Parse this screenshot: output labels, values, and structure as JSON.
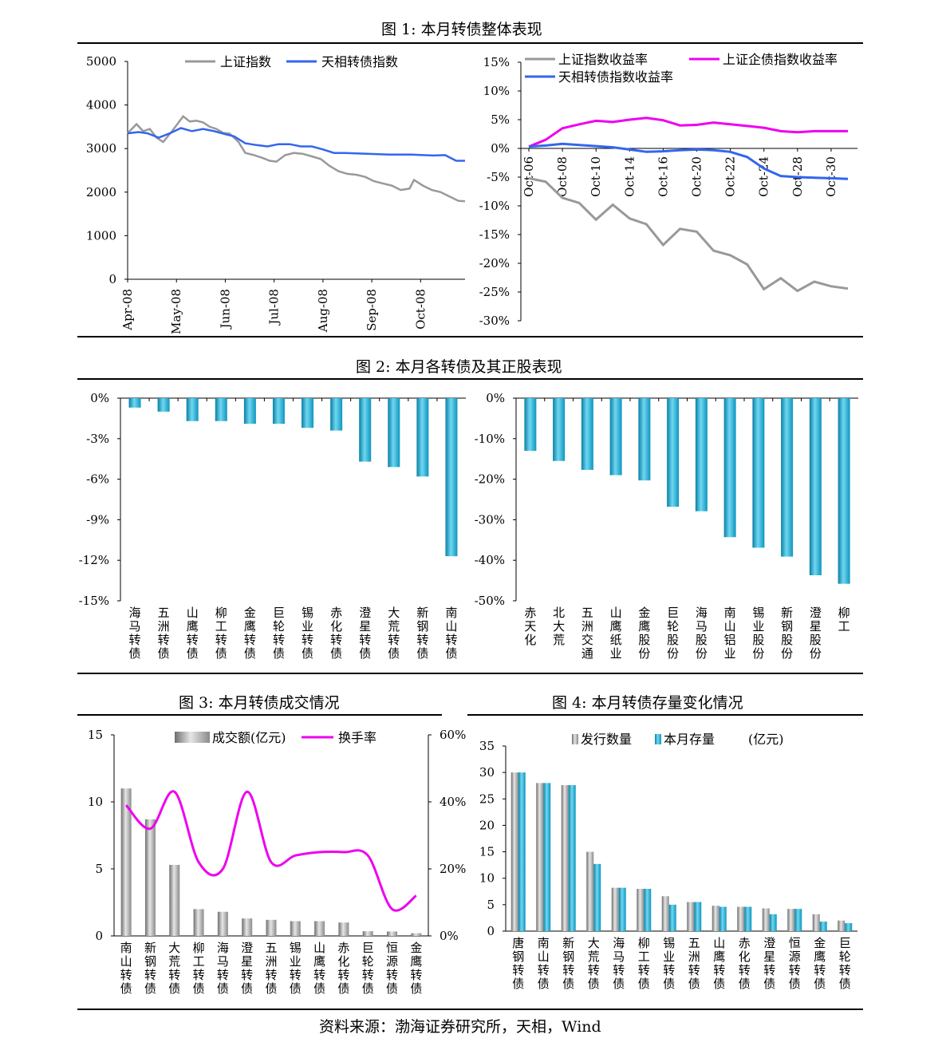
{
  "fig1": {
    "title": "图 1:  本月转债整体表现"
  },
  "fig2": {
    "title": "图 2:  本月各转债及其正股表现"
  },
  "fig3": {
    "title": "图 3:  本月转债成交情况"
  },
  "fig4": {
    "title": "图 4:  本月转债存量变化情况"
  },
  "source": "资料来源：渤海证券研究所，天相，Wind",
  "chart_data": [
    {
      "id": "c1",
      "type": "line",
      "legend": [
        "上证指数",
        "天相转债指数"
      ],
      "colors": [
        "#999999",
        "#3366ee"
      ],
      "ylim": [
        0,
        5000
      ],
      "yticks": [
        0,
        1000,
        2000,
        3000,
        4000,
        5000
      ],
      "ytick_labels": [
        "0",
        "1000",
        "2000",
        "3000",
        "4000",
        "5000"
      ],
      "xtick_labels": [
        "Apr-08",
        "May-08",
        "Jun-08",
        "Jul-08",
        "Aug-08",
        "Sep-08",
        "Oct-08"
      ],
      "xtick_pos": [
        0,
        22,
        44,
        66,
        88,
        110,
        132
      ],
      "x_count": 153,
      "series": [
        {
          "name": "上证指数",
          "points": [
            [
              0,
              3350
            ],
            [
              4,
              3560
            ],
            [
              7,
              3400
            ],
            [
              10,
              3450
            ],
            [
              13,
              3250
            ],
            [
              16,
              3150
            ],
            [
              20,
              3400
            ],
            [
              23,
              3600
            ],
            [
              25,
              3740
            ],
            [
              28,
              3620
            ],
            [
              31,
              3640
            ],
            [
              34,
              3600
            ],
            [
              37,
              3500
            ],
            [
              40,
              3450
            ],
            [
              43,
              3360
            ],
            [
              46,
              3340
            ],
            [
              50,
              3150
            ],
            [
              53,
              2900
            ],
            [
              57,
              2850
            ],
            [
              61,
              2780
            ],
            [
              64,
              2720
            ],
            [
              67,
              2700
            ],
            [
              71,
              2850
            ],
            [
              75,
              2900
            ],
            [
              79,
              2880
            ],
            [
              83,
              2820
            ],
            [
              87,
              2760
            ],
            [
              91,
              2600
            ],
            [
              95,
              2480
            ],
            [
              99,
              2420
            ],
            [
              103,
              2400
            ],
            [
              107,
              2350
            ],
            [
              111,
              2250
            ],
            [
              115,
              2200
            ],
            [
              119,
              2150
            ],
            [
              123,
              2050
            ],
            [
              127,
              2080
            ],
            [
              129,
              2280
            ],
            [
              133,
              2150
            ],
            [
              137,
              2050
            ],
            [
              141,
              2000
            ],
            [
              145,
              1900
            ],
            [
              149,
              1800
            ],
            [
              152,
              1790
            ]
          ]
        },
        {
          "name": "天相转债指数",
          "points": [
            [
              0,
              3350
            ],
            [
              5,
              3380
            ],
            [
              9,
              3350
            ],
            [
              14,
              3250
            ],
            [
              19,
              3350
            ],
            [
              24,
              3470
            ],
            [
              29,
              3400
            ],
            [
              34,
              3450
            ],
            [
              39,
              3400
            ],
            [
              44,
              3330
            ],
            [
              48,
              3280
            ],
            [
              53,
              3120
            ],
            [
              58,
              3080
            ],
            [
              63,
              3050
            ],
            [
              68,
              3100
            ],
            [
              73,
              3100
            ],
            [
              78,
              3050
            ],
            [
              83,
              3050
            ],
            [
              88,
              2980
            ],
            [
              93,
              2900
            ],
            [
              98,
              2900
            ],
            [
              103,
              2890
            ],
            [
              108,
              2880
            ],
            [
              113,
              2870
            ],
            [
              118,
              2860
            ],
            [
              123,
              2860
            ],
            [
              128,
              2860
            ],
            [
              133,
              2850
            ],
            [
              138,
              2840
            ],
            [
              143,
              2850
            ],
            [
              148,
              2720
            ],
            [
              152,
              2720
            ]
          ]
        }
      ]
    },
    {
      "id": "c2",
      "type": "line",
      "legend": [
        "上证指数收益率",
        "上证企债指数收益率",
        "天相转债指数收益率"
      ],
      "colors": [
        "#999999",
        "#ee00ee",
        "#3366ee"
      ],
      "ylim": [
        -30,
        15
      ],
      "yticks": [
        -30,
        -25,
        -20,
        -15,
        -10,
        -5,
        0,
        5,
        10,
        15
      ],
      "ytick_labels": [
        "-30%",
        "-25%",
        "-20%",
        "-15%",
        "-10%",
        "-5%",
        "0%",
        "5%",
        "10%",
        "15%"
      ],
      "xtick_labels": [
        "Oct-06",
        "Oct-08",
        "Oct-10",
        "Oct-14",
        "Oct-16",
        "Oct-20",
        "Oct-22",
        "Oct-24",
        "Oct-28",
        "Oct-30"
      ],
      "xtick_pos": [
        0,
        2,
        4,
        6,
        8,
        10,
        12,
        14,
        16,
        18
      ],
      "x_count": 20,
      "series": [
        {
          "name": "上证指数收益率",
          "points": [
            [
              0,
              -5.2
            ],
            [
              1,
              -5.8
            ],
            [
              2,
              -8.6
            ],
            [
              3,
              -9.5
            ],
            [
              4,
              -12.4
            ],
            [
              5,
              -9.8
            ],
            [
              6,
              -12.2
            ],
            [
              7,
              -13.2
            ],
            [
              8,
              -16.8
            ],
            [
              9,
              -14.0
            ],
            [
              10,
              -14.5
            ],
            [
              11,
              -17.8
            ],
            [
              12,
              -18.6
            ],
            [
              13,
              -20.2
            ],
            [
              14,
              -24.5
            ],
            [
              15,
              -22.6
            ],
            [
              16,
              -24.8
            ],
            [
              17,
              -23.2
            ],
            [
              18,
              -24.0
            ],
            [
              19,
              -24.4
            ]
          ]
        },
        {
          "name": "上证企债指数收益率",
          "points": [
            [
              0,
              0.3
            ],
            [
              1,
              1.5
            ],
            [
              2,
              3.5
            ],
            [
              3,
              4.2
            ],
            [
              4,
              4.8
            ],
            [
              5,
              4.6
            ],
            [
              6,
              5.0
            ],
            [
              7,
              5.3
            ],
            [
              8,
              4.9
            ],
            [
              9,
              4.0
            ],
            [
              10,
              4.1
            ],
            [
              11,
              4.5
            ],
            [
              12,
              4.2
            ],
            [
              13,
              3.9
            ],
            [
              14,
              3.6
            ],
            [
              15,
              3.0
            ],
            [
              16,
              2.8
            ],
            [
              17,
              3.0
            ],
            [
              18,
              3.0
            ],
            [
              19,
              3.0
            ]
          ]
        },
        {
          "name": "天相转债指数收益率",
          "points": [
            [
              0,
              0.3
            ],
            [
              1,
              0.5
            ],
            [
              2,
              0.8
            ],
            [
              3,
              0.6
            ],
            [
              4,
              0.4
            ],
            [
              5,
              0.2
            ],
            [
              6,
              -0.2
            ],
            [
              7,
              -0.6
            ],
            [
              8,
              -0.5
            ],
            [
              9,
              -0.3
            ],
            [
              10,
              -0.2
            ],
            [
              11,
              -0.3
            ],
            [
              12,
              -0.6
            ],
            [
              13,
              -1.5
            ],
            [
              14,
              -3.5
            ],
            [
              15,
              -4.8
            ],
            [
              16,
              -5.0
            ],
            [
              17,
              -5.1
            ],
            [
              18,
              -5.2
            ],
            [
              19,
              -5.3
            ]
          ]
        }
      ]
    },
    {
      "id": "c3",
      "type": "bar",
      "color": "#1aa3c8",
      "ylim": [
        -15,
        0
      ],
      "yticks": [
        -15,
        -12,
        -9,
        -6,
        -3,
        0
      ],
      "ytick_labels": [
        "-15%",
        "-12%",
        "-9%",
        "-6%",
        "-3%",
        "0%"
      ],
      "categories": [
        "海马转债",
        "五洲转债",
        "山鹰转债",
        "柳工转债",
        "金鹰转债",
        "巨轮转债",
        "锡业转债",
        "赤化转债",
        "澄星转债",
        "大荒转债",
        "新钢转债",
        "南山转债"
      ],
      "values": [
        -0.7,
        -1.0,
        -1.7,
        -1.7,
        -1.9,
        -1.9,
        -2.2,
        -2.4,
        -4.7,
        -5.1,
        -5.8,
        -11.7
      ]
    },
    {
      "id": "c4",
      "type": "bar",
      "color": "#1aa3c8",
      "ylim": [
        -50,
        0
      ],
      "yticks": [
        -50,
        -40,
        -30,
        -20,
        -10,
        0
      ],
      "ytick_labels": [
        "-50%",
        "-40%",
        "-30%",
        "-20%",
        "-10%",
        "0%"
      ],
      "categories": [
        "赤天化",
        "北大荒",
        "五洲交通",
        "山鹰纸业",
        "金鹰股份",
        "巨轮股份",
        "海马股份",
        "南山铝业",
        "锡业股份",
        "新钢股份",
        "澄星股份",
        "柳工"
      ],
      "values": [
        -13,
        -15.5,
        -17.7,
        -19,
        -20.3,
        -26.8,
        -27.9,
        -34.3,
        -36.9,
        -39.1,
        -43.7,
        -45.8
      ]
    },
    {
      "id": "c5",
      "type": "bar",
      "legend": [
        "成交额(亿元)",
        "换手率"
      ],
      "colors": [
        "#999999",
        "#ee00ee"
      ],
      "ylim": [
        0,
        15
      ],
      "yticks": [
        0,
        5,
        10,
        15
      ],
      "ytick_labels": [
        "0",
        "5",
        "10",
        "15"
      ],
      "y2lim": [
        0,
        60
      ],
      "y2ticks": [
        0,
        20,
        40,
        60
      ],
      "y2tick_labels": [
        "0%",
        "20%",
        "40%",
        "60%"
      ],
      "categories": [
        "南山转债",
        "新钢转债",
        "大荒转债",
        "柳工转债",
        "海马转债",
        "澄星转债",
        "五洲转债",
        "锡业转债",
        "山鹰转债",
        "赤化转债",
        "巨轮转债",
        "恒源转债",
        "金鹰转债"
      ],
      "series": [
        {
          "name": "成交额(亿元)",
          "values": [
            11.0,
            8.7,
            5.3,
            2.0,
            1.8,
            1.3,
            1.2,
            1.1,
            1.1,
            1.0,
            0.35,
            0.33,
            0.2
          ]
        },
        {
          "name": "换手率",
          "values": [
            39,
            32,
            43,
            22,
            20,
            43,
            22,
            24,
            25,
            25,
            24,
            8,
            12
          ]
        }
      ]
    },
    {
      "id": "c6",
      "type": "bar",
      "legend": [
        "发行数量",
        "本月存量"
      ],
      "legend_unit": "(亿元)",
      "colors": [
        "#999999",
        "#1aa3c8"
      ],
      "ylim": [
        0,
        35
      ],
      "yticks": [
        0,
        5,
        10,
        15,
        20,
        25,
        30,
        35
      ],
      "ytick_labels": [
        "0",
        "5",
        "10",
        "15",
        "20",
        "25",
        "30",
        "35"
      ],
      "categories": [
        "唐钢转债",
        "南山转债",
        "新钢转债",
        "大荒转债",
        "海马转债",
        "柳工转债",
        "锡业转债",
        "五洲转债",
        "山鹰转债",
        "赤化转债",
        "澄星转债",
        "恒源转债",
        "金鹰转债",
        "巨轮转债"
      ],
      "series": [
        {
          "name": "发行数量",
          "values": [
            30,
            28,
            27.6,
            15,
            8.2,
            8.0,
            6.6,
            5.5,
            4.8,
            4.6,
            4.3,
            4.2,
            3.2,
            2.0
          ]
        },
        {
          "name": "本月存量",
          "values": [
            30,
            28,
            27.6,
            12.7,
            8.2,
            8.0,
            5.0,
            5.5,
            4.6,
            4.6,
            3.2,
            4.2,
            1.8,
            1.5
          ]
        }
      ]
    }
  ]
}
